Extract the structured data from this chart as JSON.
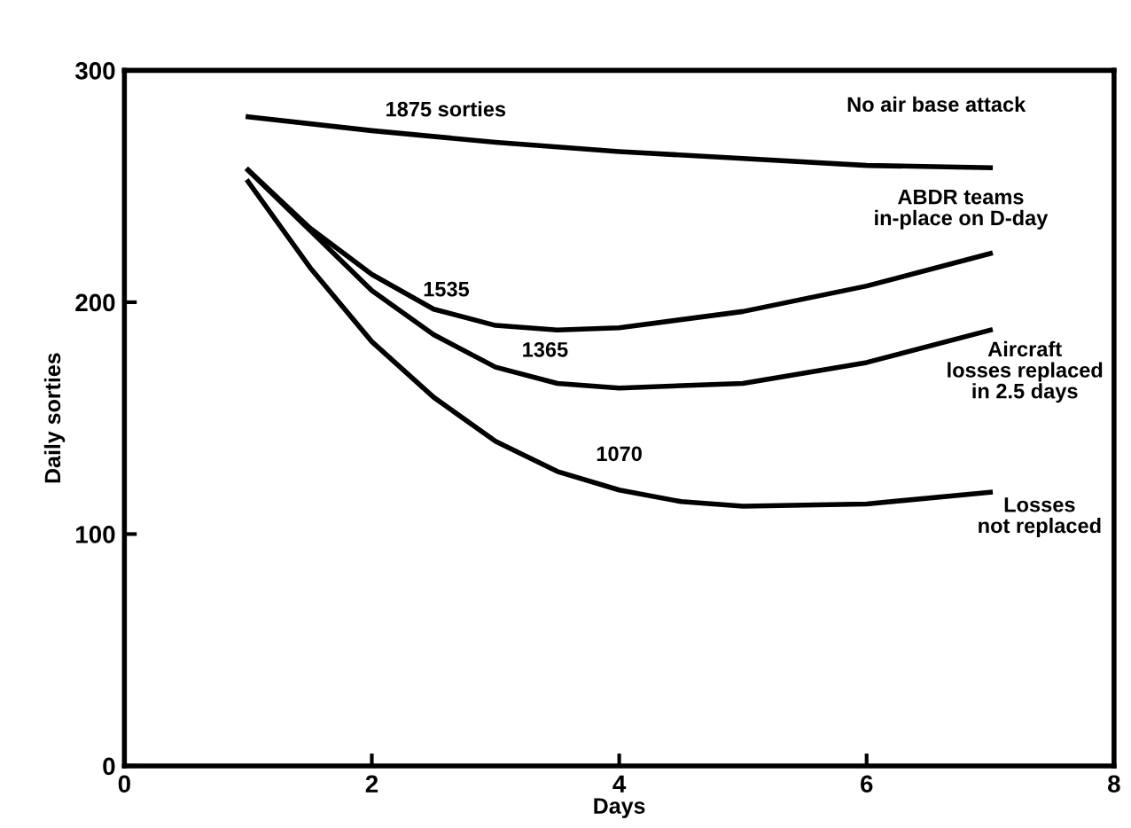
{
  "chart_data": {
    "type": "line",
    "xlabel": "Days",
    "ylabel": "Daily sorties",
    "xlim": [
      0,
      8
    ],
    "ylim": [
      0,
      300
    ],
    "xticks": [
      0,
      2,
      4,
      6,
      8
    ],
    "yticks": [
      0,
      100,
      200,
      300
    ],
    "grid": false,
    "legend": false,
    "marker": "none",
    "line_style": "solid",
    "series": [
      {
        "color": "#000000",
        "x": [
          1,
          2,
          3,
          4,
          5,
          6,
          7
        ],
        "values": [
          280,
          274,
          269,
          265,
          262,
          259,
          258
        ]
      },
      {
        "color": "#000000",
        "x": [
          1,
          1.5,
          2,
          2.5,
          3,
          3.5,
          4,
          5,
          6,
          7
        ],
        "values": [
          257,
          232,
          212,
          197,
          190,
          188,
          189,
          196,
          207,
          221
        ]
      },
      {
        "color": "#000000",
        "x": [
          1,
          1.5,
          2,
          2.5,
          3,
          3.5,
          4,
          5,
          6,
          7
        ],
        "values": [
          257,
          231,
          205,
          186,
          172,
          165,
          163,
          165,
          174,
          188
        ]
      },
      {
        "color": "#000000",
        "x": [
          1,
          1.5,
          2,
          2.5,
          3,
          3.5,
          4,
          4.5,
          5,
          6,
          7
        ],
        "values": [
          252,
          215,
          183,
          159,
          140,
          127,
          119,
          114,
          112,
          113,
          118
        ]
      }
    ],
    "annotations": [
      {
        "text": "1875 sorties",
        "x": 2,
        "y": 274
      },
      {
        "text": "1535",
        "x": 3,
        "y": 190
      },
      {
        "text": "1365",
        "x": 3.5,
        "y": 165
      },
      {
        "text": "1070",
        "x": 4,
        "y": 119
      },
      {
        "text": "No air base attack",
        "x": 7,
        "y": 258
      },
      {
        "text": "ABDR teams\nin-place on D-day",
        "x": 7,
        "y": 221
      },
      {
        "text": "Aircraft\nlosses replaced\nin 2.5 days",
        "x": 7,
        "y": 188
      },
      {
        "text": "Losses\nnot replaced",
        "x": 7,
        "y": 118
      }
    ]
  }
}
